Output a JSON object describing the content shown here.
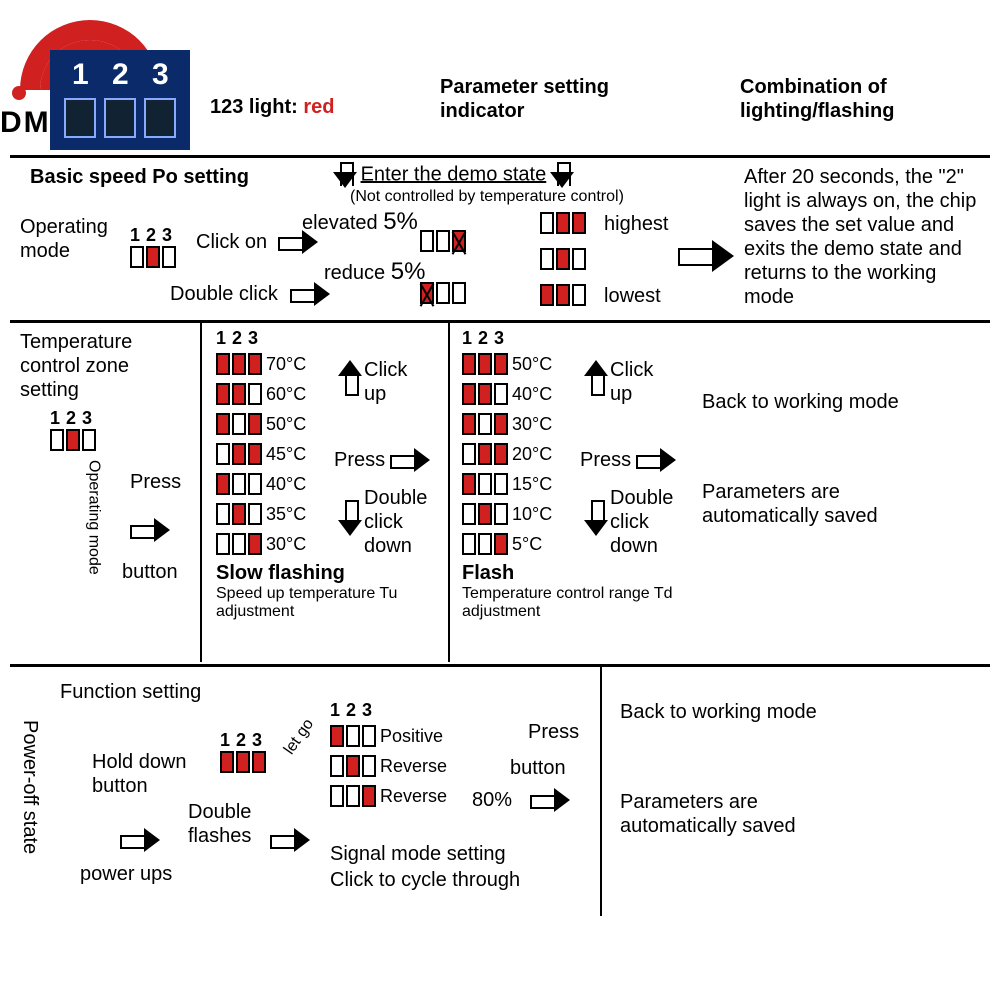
{
  "colors": {
    "red": "#d02020",
    "black": "#000000",
    "pcb_bg": "#0a2a6a",
    "white": "#ffffff"
  },
  "logo_text": "DMYOND",
  "header": {
    "light_label": "123 light:",
    "light_color": "red",
    "param_indicator": "Parameter setting indicator",
    "combo": "Combination of lighting/flashing"
  },
  "section1": {
    "title": "Basic speed Po setting",
    "operating_mode": "Operating mode",
    "nums": "123",
    "click_on": "Click on",
    "double_click": "Double click",
    "enter_demo": "Enter the demo state",
    "enter_demo_note": "(Not controlled by temperature control)",
    "elevated": "elevated",
    "elevated_pct": "5%",
    "reduce": "reduce",
    "reduce_pct": "5%",
    "highest": "highest",
    "lowest": "lowest",
    "after_text": "After 20 seconds, the \"2\" light is always on, the chip saves the set value and exits the demo state and returns to the working mode"
  },
  "section2": {
    "title": "Temperature control zone setting",
    "nums": "123",
    "op_mode_v": "Operating mode",
    "press": "Press",
    "button": "button",
    "click_up": "Click up",
    "press_mid": "Press",
    "dbl_down": "Double click down",
    "left": {
      "header": "123",
      "rows": [
        {
          "leds": [
            1,
            1,
            1
          ],
          "t": "70°C"
        },
        {
          "leds": [
            1,
            1,
            0
          ],
          "t": "60°C"
        },
        {
          "leds": [
            1,
            0,
            1
          ],
          "t": "50°C"
        },
        {
          "leds": [
            0,
            1,
            1
          ],
          "t": "45°C"
        },
        {
          "leds": [
            1,
            0,
            0
          ],
          "t": "40°C"
        },
        {
          "leds": [
            0,
            1,
            0
          ],
          "t": "35°C"
        },
        {
          "leds": [
            0,
            0,
            1
          ],
          "t": "30°C"
        }
      ],
      "mode": "Slow flashing",
      "note": "Speed up temperature Tu adjustment"
    },
    "right": {
      "header": "123",
      "rows": [
        {
          "leds": [
            1,
            1,
            1
          ],
          "t": "50°C"
        },
        {
          "leds": [
            1,
            1,
            0
          ],
          "t": "40°C"
        },
        {
          "leds": [
            1,
            0,
            1
          ],
          "t": "30°C"
        },
        {
          "leds": [
            0,
            1,
            1
          ],
          "t": "20°C"
        },
        {
          "leds": [
            1,
            0,
            0
          ],
          "t": "15°C"
        },
        {
          "leds": [
            0,
            1,
            0
          ],
          "t": "10°C"
        },
        {
          "leds": [
            0,
            0,
            1
          ],
          "t": " 5°C"
        }
      ],
      "mode": "Flash",
      "note": "Temperature control range Td adjustment"
    },
    "back": "Back to working mode",
    "saved": "Parameters are automatically saved"
  },
  "section3": {
    "title": "Function setting",
    "poweroff_v": "Power-off state",
    "nums": "123",
    "hold": "Hold down button",
    "letgo": "let go",
    "dblflash": "Double flashes",
    "powerups": "power ups",
    "sig_header": "123",
    "rows": [
      {
        "leds": [
          1,
          0,
          0
        ],
        "lbl": "Positive"
      },
      {
        "leds": [
          0,
          1,
          0
        ],
        "lbl": "Reverse"
      },
      {
        "leds": [
          0,
          0,
          1
        ],
        "lbl": "Reverse"
      }
    ],
    "pct80": "80%",
    "press": "Press",
    "button": "button",
    "signal_title": "Signal mode setting",
    "signal_sub": "Click to cycle through",
    "back": "Back to working mode",
    "saved": "Parameters are automatically saved"
  }
}
